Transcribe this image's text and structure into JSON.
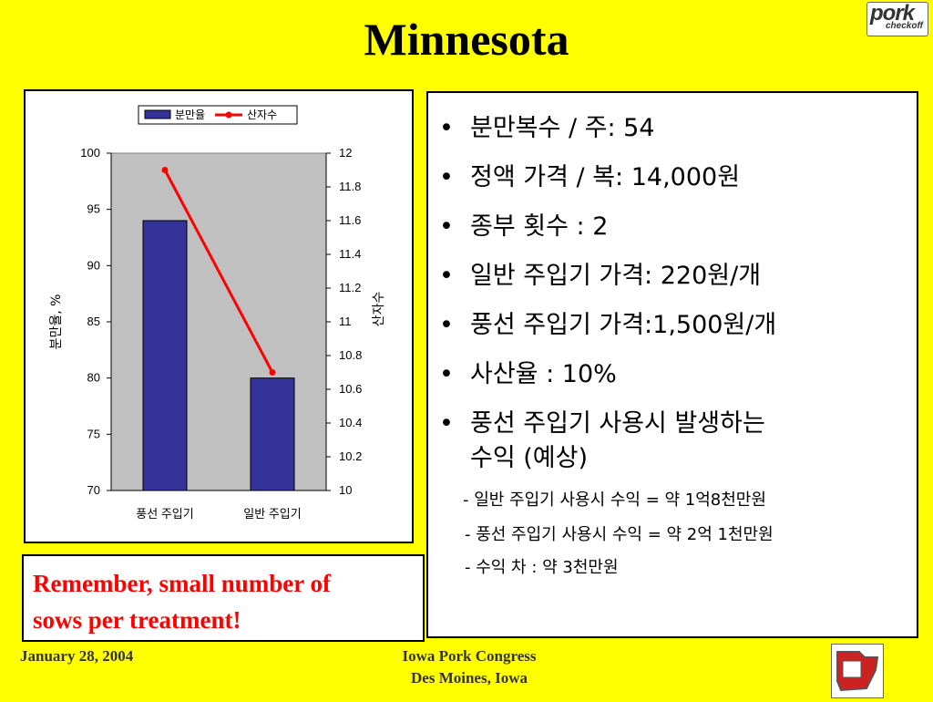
{
  "title": "Minnesota",
  "logo_text": "pork checkoff",
  "chart_data": {
    "type": "bar",
    "categories": [
      "풍선 주입기",
      "일반 주입기"
    ],
    "series": [
      {
        "name": "분만율",
        "values": [
          94,
          80
        ],
        "axis": "left",
        "color": "#333399"
      },
      {
        "name": "산자수",
        "values": [
          11.9,
          10.7
        ],
        "axis": "right",
        "style": "line",
        "color": "#ff0000"
      }
    ],
    "ylabel": "분만율, %",
    "y2label": "산자수",
    "ylim": [
      70,
      100
    ],
    "y2lim": [
      10,
      12
    ],
    "yticks": [
      "100",
      "95",
      "90",
      "85",
      "80",
      "75",
      "70"
    ],
    "y2ticks": [
      "12",
      "11.8",
      "11.6",
      "11.4",
      "11.2",
      "11",
      "10.8",
      "10.6",
      "10.4",
      "10.2",
      "10"
    ],
    "legend": "top-center",
    "plot_background": "#c0c0c0"
  },
  "note": {
    "line1": "Remember, small number of",
    "line2": "sows per treatment!"
  },
  "bullets": [
    {
      "text": "분만복수 / 주: 54"
    },
    {
      "text": "정액 가격 / 복: 14,000원"
    },
    {
      "text": "종부 횟수 : 2"
    },
    {
      "text": "일반 주입기 가격: 220원/개"
    },
    {
      "text": "풍선 주입기 가격:1,500원/개"
    },
    {
      "text": "사산율 : 10%"
    }
  ],
  "bullet7": {
    "line1": "풍선 주입기 사용시 발생하는",
    "line2": "수익 (예상)"
  },
  "sub_items": [
    "- 일반 주입기 사용시 수익 = 약 1억8천만원",
    "- 풍선 주입기 사용시 수익 = 약 2억 1천만원",
    "- 수익 차 : 약 3천만원"
  ],
  "bullet_symbol": "•",
  "footer": {
    "date": "January 28, 2004",
    "event": "Iowa Pork Congress",
    "location": "Des Moines, Iowa"
  }
}
